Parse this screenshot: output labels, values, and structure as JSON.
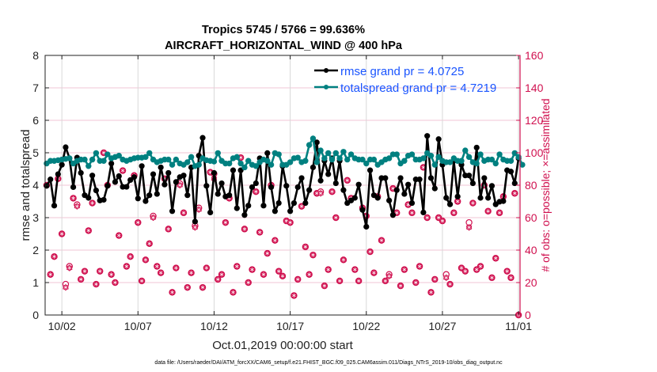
{
  "chart_data": {
    "type": "line",
    "title": [
      "Tropics 5745 / 5766 = 99.636%",
      "AIRCRAFT_HORIZONTAL_WIND @ 400 hPa"
    ],
    "xlabel": "Oct.01,2019 00:00:00 start",
    "ylabel": "rmse and totalspread",
    "ylabel_right": "# of obs: o=possible; ×=assimilated",
    "footnote": "data file: /Users/raeder/DAI/ATM_forcXX/CAM6_setup/f.e21.FHIST_BGC.f09_025.CAM6assim.011/Diags_NTrS_2019-10/obs_diag_output.nc",
    "x_units": "days since Oct.01,2019 00:00:00",
    "x_interval_days": 0.25,
    "xlim": [
      -0.1,
      31.1
    ],
    "xticks": [
      1,
      6,
      11,
      16,
      21,
      26,
      31
    ],
    "xtick_labels": [
      "10/02",
      "10/07",
      "10/12",
      "10/17",
      "10/22",
      "10/27",
      "11/01"
    ],
    "ylim": [
      0,
      8
    ],
    "yticks": [
      0,
      1,
      2,
      3,
      4,
      5,
      6,
      7,
      8
    ],
    "ylim_right": [
      0,
      160
    ],
    "yticks_right": [
      0,
      20,
      40,
      60,
      80,
      100,
      120,
      140,
      160
    ],
    "grid": true,
    "legend_position": "top-right",
    "series": [
      {
        "name": "rmse grand pr = 4.0725",
        "color": "#000000",
        "axis": "left",
        "values": [
          3.98,
          4.18,
          3.37,
          4.34,
          4.63,
          5.17,
          4.83,
          3.94,
          4.85,
          4.38,
          3.69,
          3.61,
          4.3,
          3.84,
          3.53,
          3.55,
          3.98,
          4.67,
          4.1,
          4.28,
          3.95,
          3.95,
          4.16,
          4.25,
          3.59,
          4.59,
          3.51,
          3.69,
          4.34,
          3.73,
          4.55,
          4.02,
          4.38,
          3.2,
          4.1,
          4.25,
          4.3,
          3.69,
          4.55,
          2.88,
          4.91,
          5.46,
          3.98,
          3.16,
          4.38,
          3.73,
          4.06,
          3.65,
          3.69,
          4.46,
          3.29,
          4.46,
          3.08,
          3.37,
          3.94,
          4.06,
          4.83,
          3.37,
          4.99,
          3.94,
          3.2,
          3.45,
          4.59,
          3.98,
          3.2,
          3.45,
          3.94,
          4.22,
          3.45,
          3.85,
          4.55,
          5.32,
          4.14,
          4.75,
          4.34,
          4.83,
          4.06,
          4.75,
          3.85,
          3.45,
          3.53,
          3.61,
          4.02,
          3.24,
          2.72,
          4.46,
          3.69,
          3.61,
          4.22,
          4.22,
          3.53,
          3.08,
          3.85,
          4.22,
          3.73,
          4.02,
          3.45,
          4.18,
          4.18,
          3.16,
          5.52,
          4.22,
          3.9,
          5.42,
          4.63,
          3.61,
          3.41,
          4.75,
          3.65,
          4.63,
          4.3,
          4.3,
          4.06,
          5.16,
          3.61,
          4.22,
          3.61,
          3.98,
          3.41,
          3.49,
          3.51,
          4.46,
          4.42,
          4.06,
          4.83
        ]
      },
      {
        "name": "totalspread grand pr = 4.7219",
        "color": "#008080",
        "axis": "left",
        "values": [
          4.67,
          4.75,
          4.75,
          4.77,
          4.79,
          4.81,
          4.83,
          4.67,
          4.75,
          4.79,
          4.79,
          4.59,
          4.79,
          4.99,
          4.75,
          4.75,
          4.95,
          4.83,
          4.87,
          4.91,
          4.79,
          4.75,
          4.79,
          4.83,
          4.85,
          4.85,
          4.87,
          4.99,
          4.79,
          4.71,
          4.75,
          4.79,
          4.79,
          4.63,
          4.79,
          4.67,
          4.63,
          4.71,
          4.87,
          4.59,
          4.63,
          4.83,
          4.77,
          4.75,
          4.73,
          4.99,
          4.75,
          4.67,
          4.67,
          4.83,
          4.87,
          4.67,
          4.55,
          4.75,
          4.63,
          4.59,
          4.71,
          4.79,
          4.75,
          4.63,
          4.99,
          4.95,
          4.63,
          4.63,
          4.71,
          4.83,
          4.85,
          4.71,
          4.75,
          5.24,
          5.44,
          4.71,
          5.07,
          4.83,
          4.99,
          4.79,
          4.99,
          4.83,
          5.03,
          4.79,
          4.95,
          4.83,
          4.79,
          4.79,
          4.67,
          4.79,
          4.79,
          4.63,
          4.71,
          4.79,
          4.83,
          4.95,
          4.95,
          4.67,
          4.75,
          4.91,
          4.95,
          4.79,
          4.79,
          4.83,
          4.99,
          4.91,
          4.63,
          4.87,
          4.75,
          4.71,
          4.71,
          4.83,
          4.75,
          4.75,
          5.07,
          4.87,
          4.71,
          4.67,
          4.95,
          4.75,
          4.79,
          4.79,
          4.67,
          4.95,
          4.79,
          4.75,
          4.75,
          4.99,
          4.87,
          4.63
        ]
      },
      {
        "name": "possible",
        "color": "#d0104f",
        "axis": "right",
        "values": [
          80,
          25,
          36,
          84,
          50,
          19,
          30,
          72,
          68,
          22,
          27,
          52,
          69,
          19,
          27,
          100,
          80,
          25,
          20,
          49,
          89,
          30,
          36,
          86,
          57,
          21,
          34,
          44,
          61,
          30,
          26,
          84,
          53,
          14,
          29,
          81,
          63,
          17,
          26,
          55,
          66,
          17,
          29,
          88,
          87,
          22,
          25,
          57,
          72,
          14,
          30,
          97,
          53,
          20,
          28,
          76,
          51,
          25,
          38,
          80,
          46,
          27,
          24,
          58,
          57,
          12,
          22,
          67,
          42,
          25,
          37,
          75,
          76,
          18,
          28,
          76,
          60,
          21,
          34,
          83,
          72,
          28,
          21,
          66,
          61,
          39,
          26,
          73,
          46,
          21,
          25,
          78,
          63,
          18,
          28,
          68,
          63,
          20,
          30,
          91,
          60,
          14,
          22,
          60,
          58,
          25,
          19,
          63,
          70,
          29,
          27,
          57,
          69,
          28,
          30,
          80,
          64,
          23,
          35,
          63,
          73,
          27,
          23,
          75,
          0
        ]
      },
      {
        "name": "assimilated",
        "color": "#d0104f",
        "axis": "right",
        "values": [
          80,
          25,
          36,
          84,
          50,
          17,
          29,
          72,
          67,
          22,
          27,
          52,
          69,
          19,
          27,
          100,
          80,
          25,
          20,
          49,
          89,
          30,
          36,
          86,
          57,
          21,
          34,
          44,
          60,
          30,
          26,
          84,
          53,
          14,
          29,
          80,
          63,
          17,
          26,
          54,
          65,
          17,
          29,
          88,
          84,
          22,
          25,
          57,
          72,
          14,
          30,
          97,
          53,
          20,
          28,
          76,
          51,
          25,
          38,
          80,
          46,
          27,
          24,
          58,
          57,
          12,
          22,
          67,
          42,
          25,
          37,
          75,
          75,
          18,
          28,
          76,
          60,
          21,
          34,
          83,
          72,
          28,
          21,
          66,
          61,
          39,
          26,
          73,
          46,
          21,
          24,
          78,
          63,
          18,
          28,
          68,
          63,
          20,
          30,
          91,
          60,
          14,
          22,
          60,
          58,
          23,
          19,
          63,
          70,
          29,
          27,
          54,
          69,
          28,
          30,
          80,
          64,
          23,
          35,
          63,
          73,
          27,
          23,
          75,
          0
        ]
      }
    ],
    "colors": {
      "right_axis": "#d0104f",
      "legend_text": "#1a55ff",
      "grid_h": "#f2c4d4",
      "grid_v": "#d9d9d9"
    }
  }
}
